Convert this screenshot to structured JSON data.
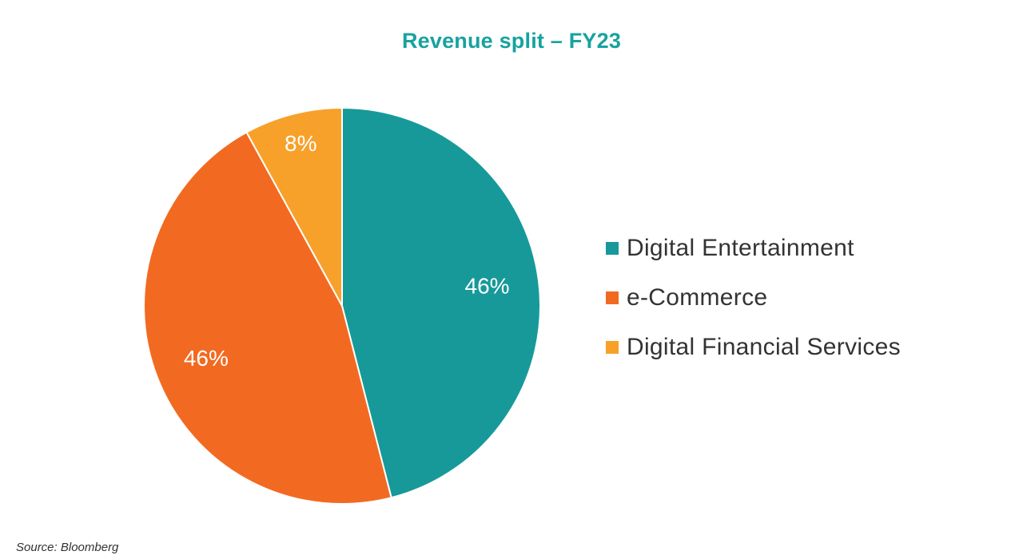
{
  "chart_data": {
    "type": "pie",
    "title": "Revenue split – FY23",
    "categories": [
      "Digital Entertainment",
      "e-Commerce",
      "Digital Financial Services"
    ],
    "values": [
      46,
      46,
      8
    ],
    "data_labels": [
      "46%",
      "46%",
      "8%"
    ],
    "colors": [
      "#17999a",
      "#f26a21",
      "#f7a12a"
    ],
    "legend_position": "right",
    "start_angle": "top, clockwise"
  },
  "footer": {
    "source": "Source: Bloomberg"
  }
}
